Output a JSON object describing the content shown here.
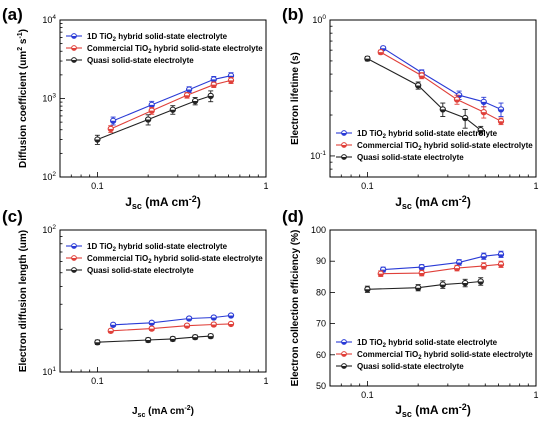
{
  "chart_data": [
    {
      "panel_label": "(a)",
      "type": "line",
      "x_scale": "log",
      "y_scale": "log",
      "xlim": [
        0.06,
        1.0
      ],
      "ylim": [
        100,
        10000
      ],
      "xlabel": {
        "base": "J",
        "sub": "sc",
        "rest": " (mA cm",
        "sup": "-2",
        "end": ")"
      },
      "ylabel": {
        "base": "Diffusion coefficient (um",
        "sup": "2",
        "rest": " s",
        "sup2": "-1",
        "end": ")"
      },
      "x_ticks": [
        {
          "v": 0.1,
          "label": "0.1"
        },
        {
          "v": 1,
          "label": "1"
        }
      ],
      "y_ticks": [
        {
          "v": 100,
          "label": "10",
          "sup": "2"
        },
        {
          "v": 1000,
          "label": "10",
          "sup": "3"
        },
        {
          "v": 10000,
          "label": "10",
          "sup": "4"
        }
      ],
      "legend_position": "top-left",
      "series": [
        {
          "name": {
            "pre": "1D TiO",
            "sub": "2",
            "post": " hybrid solid-state electrolyte"
          },
          "color": "#2a3bd6",
          "x": [
            0.124,
            0.21,
            0.35,
            0.49,
            0.62
          ],
          "y": [
            520,
            830,
            1300,
            1750,
            1950
          ],
          "err": [
            60,
            90,
            110,
            160,
            180
          ]
        },
        {
          "name": {
            "pre": "Commercial TiO",
            "sub": "2",
            "post": " hybrid solid-state electrolyte"
          },
          "color": "#e0403a",
          "x": [
            0.12,
            0.21,
            0.34,
            0.49,
            0.62
          ],
          "y": [
            410,
            700,
            1100,
            1500,
            1700
          ],
          "err": [
            40,
            70,
            90,
            120,
            150
          ]
        },
        {
          "name": {
            "pre": "Quasi solid-state electrolyte",
            "sub": "",
            "post": ""
          },
          "color": "#222222",
          "x": [
            0.1,
            0.2,
            0.28,
            0.38,
            0.47
          ],
          "y": [
            300,
            540,
            720,
            930,
            1080
          ],
          "err": [
            40,
            80,
            90,
            100,
            170
          ]
        }
      ]
    },
    {
      "panel_label": "(b)",
      "type": "line",
      "x_scale": "log",
      "y_scale": "log",
      "xlim": [
        0.06,
        1.0
      ],
      "ylim": [
        0.07,
        1.0
      ],
      "xlabel": {
        "base": "J",
        "sub": "sc",
        "rest": " (mA cm",
        "sup": "-2",
        "end": ")"
      },
      "ylabel": {
        "base": "Electron lifetime (s)",
        "sup": "",
        "rest": "",
        "sup2": "",
        "end": ""
      },
      "x_ticks": [
        {
          "v": 0.1,
          "label": "0.1"
        },
        {
          "v": 1,
          "label": "1"
        }
      ],
      "y_ticks": [
        {
          "v": 0.1,
          "label": "10",
          "sup": "-1"
        },
        {
          "v": 1,
          "label": "10",
          "sup": "0"
        }
      ],
      "legend_position": "bottom-left",
      "series": [
        {
          "name": {
            "pre": "1D TiO",
            "sub": "2",
            "post": " hybrid solid-state electrolyte"
          },
          "color": "#2a3bd6",
          "x": [
            0.124,
            0.21,
            0.35,
            0.49,
            0.62
          ],
          "y": [
            0.62,
            0.41,
            0.28,
            0.25,
            0.22
          ],
          "err": [
            0.02,
            0.02,
            0.02,
            0.02,
            0.025
          ]
        },
        {
          "name": {
            "pre": "Commercial TiO",
            "sub": "2",
            "post": " hybrid solid-state electrolyte"
          },
          "color": "#e0403a",
          "x": [
            0.12,
            0.21,
            0.34,
            0.49,
            0.62
          ],
          "y": [
            0.58,
            0.39,
            0.26,
            0.21,
            0.18
          ],
          "err": [
            0.02,
            0.02,
            0.02,
            0.02,
            0.01
          ]
        },
        {
          "name": {
            "pre": "Quasi solid-state electrolyte",
            "sub": "",
            "post": ""
          },
          "color": "#222222",
          "x": [
            0.1,
            0.2,
            0.28,
            0.38,
            0.47
          ],
          "y": [
            0.52,
            0.33,
            0.22,
            0.19,
            0.155
          ],
          "err": [
            0.02,
            0.02,
            0.025,
            0.03,
            0.01
          ]
        }
      ]
    },
    {
      "panel_label": "(c)",
      "type": "line",
      "x_scale": "log",
      "y_scale": "log",
      "xlim": [
        0.06,
        1.0
      ],
      "ylim": [
        10,
        100
      ],
      "xlabel": {
        "base": "J",
        "sub": "sc",
        "rest": " (mA cm",
        "sup": "-2",
        "end": ")"
      },
      "ylabel": {
        "base": "Electron diffusion length (um)",
        "sup": "",
        "rest": "",
        "sup2": "",
        "end": ""
      },
      "x_ticks": [
        {
          "v": 0.1,
          "label": "0.1"
        },
        {
          "v": 1,
          "label": "1"
        }
      ],
      "y_ticks": [
        {
          "v": 10,
          "label": "10",
          "sup": "1"
        },
        {
          "v": 100,
          "label": "10",
          "sup": "2"
        }
      ],
      "legend_position": "top-left",
      "series": [
        {
          "name": {
            "pre": "1D TiO",
            "sub": "2",
            "post": " hybrid solid-state electrolyte"
          },
          "color": "#2a3bd6",
          "x": [
            0.124,
            0.21,
            0.35,
            0.49,
            0.62
          ],
          "y": [
            21.5,
            22.2,
            23.8,
            24.2,
            25.0
          ],
          "err": [
            0.6,
            0.6,
            0.6,
            0.6,
            0.6
          ]
        },
        {
          "name": {
            "pre": "Commercial TiO",
            "sub": "2",
            "post": " hybrid solid-state electrolyte"
          },
          "color": "#e0403a",
          "x": [
            0.12,
            0.21,
            0.34,
            0.49,
            0.62
          ],
          "y": [
            19.5,
            20.2,
            21.2,
            21.6,
            21.8
          ],
          "err": [
            0.6,
            0.6,
            0.6,
            0.6,
            0.6
          ]
        },
        {
          "name": {
            "pre": "Quasi solid-state electrolyte",
            "sub": "",
            "post": ""
          },
          "color": "#222222",
          "x": [
            0.1,
            0.2,
            0.28,
            0.38,
            0.47
          ],
          "y": [
            16.2,
            16.8,
            17.1,
            17.6,
            17.9
          ],
          "err": [
            0.6,
            0.6,
            0.6,
            0.6,
            0.6
          ]
        }
      ]
    },
    {
      "panel_label": "(d)",
      "type": "line",
      "x_scale": "log",
      "y_scale": "linear",
      "xlim": [
        0.06,
        1.0
      ],
      "ylim": [
        50,
        100
      ],
      "xlabel": {
        "base": "J",
        "sub": "sc",
        "rest": " (mA cm",
        "sup": "-2",
        "end": ")"
      },
      "ylabel": {
        "base": "Electron collection efficiency (%)",
        "sup": "",
        "rest": "",
        "sup2": "",
        "end": ""
      },
      "x_ticks": [
        {
          "v": 0.1,
          "label": "0.1"
        },
        {
          "v": 1,
          "label": "1"
        }
      ],
      "y_ticks": [
        {
          "v": 50,
          "label": "50",
          "sup": ""
        },
        {
          "v": 60,
          "label": "60",
          "sup": ""
        },
        {
          "v": 70,
          "label": "70",
          "sup": ""
        },
        {
          "v": 80,
          "label": "80",
          "sup": ""
        },
        {
          "v": 90,
          "label": "90",
          "sup": ""
        },
        {
          "v": 100,
          "label": "100",
          "sup": ""
        }
      ],
      "legend_position": "bottom-left",
      "series": [
        {
          "name": {
            "pre": "1D TiO",
            "sub": "2",
            "post": " hybrid solid-state electrolyte"
          },
          "color": "#2a3bd6",
          "x": [
            0.124,
            0.21,
            0.35,
            0.49,
            0.62
          ],
          "y": [
            87.3,
            88.1,
            89.6,
            91.6,
            92.2
          ],
          "err": [
            0.8,
            0.8,
            0.9,
            1.0,
            1.0
          ]
        },
        {
          "name": {
            "pre": "Commercial TiO",
            "sub": "2",
            "post": " hybrid solid-state electrolyte"
          },
          "color": "#e0403a",
          "x": [
            0.12,
            0.21,
            0.34,
            0.49,
            0.62
          ],
          "y": [
            86.0,
            86.2,
            87.8,
            88.5,
            89.0
          ],
          "err": [
            0.9,
            0.9,
            0.9,
            1.0,
            1.0
          ]
        },
        {
          "name": {
            "pre": "Quasi solid-state electrolyte",
            "sub": "",
            "post": ""
          },
          "color": "#222222",
          "x": [
            0.1,
            0.2,
            0.28,
            0.38,
            0.47
          ],
          "y": [
            81.0,
            81.5,
            82.5,
            83.0,
            83.5
          ],
          "err": [
            1.0,
            1.0,
            1.2,
            1.2,
            1.2
          ]
        }
      ]
    }
  ]
}
